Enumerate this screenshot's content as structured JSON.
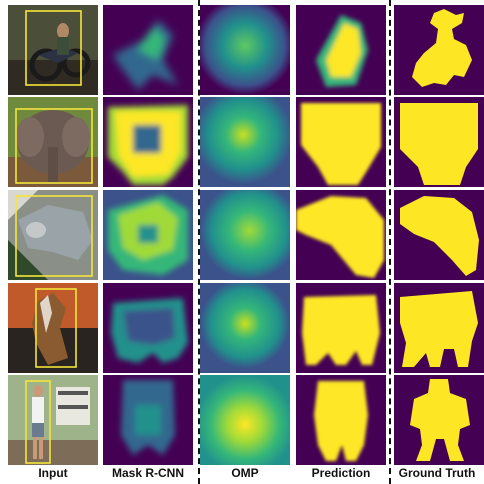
{
  "columns": [
    "Input",
    "Mask R-CNN",
    "OMP",
    "Prediction",
    "Ground Truth"
  ],
  "rows": [
    {
      "input_scene": "motorcycle-photo",
      "object": "person-on-motorcycle"
    },
    {
      "input_scene": "elephant-photo",
      "object": "elephant"
    },
    {
      "input_scene": "cat-photo",
      "object": "cat"
    },
    {
      "input_scene": "horse-photo",
      "object": "horse"
    },
    {
      "input_scene": "person-with-sign-photo",
      "object": "person"
    }
  ],
  "colors": {
    "background_purple": "#440154",
    "mask_yellow": "#fde725",
    "mid_teal": "#21918c",
    "bbox_yellow": "#f5e53a"
  }
}
